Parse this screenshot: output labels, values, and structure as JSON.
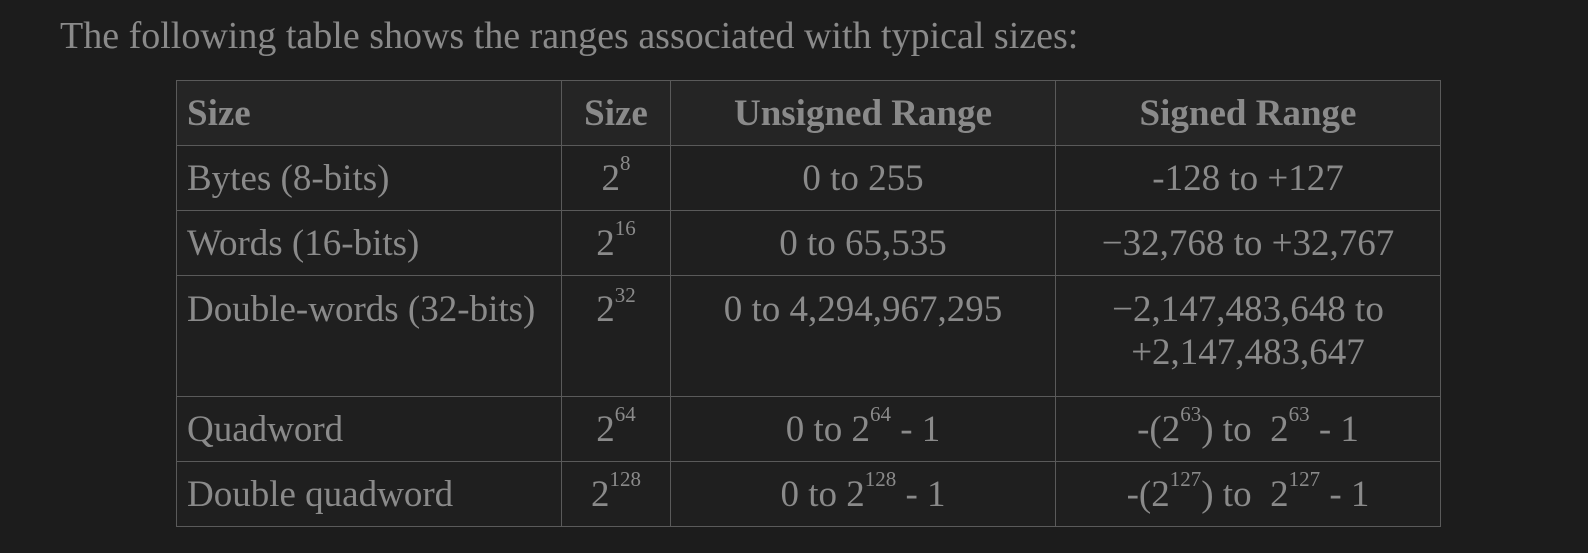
{
  "intro_text": "The following table shows the ranges associated with typical sizes:",
  "table": {
    "headers": [
      "Size",
      "Size",
      "Unsigned Range",
      "Signed Range"
    ],
    "rows": [
      {
        "name": "Bytes (8-bits)",
        "size": {
          "base": "2",
          "exp": "8"
        },
        "unsigned": "0 to 255",
        "signed": "-128 to +127"
      },
      {
        "name": "Words (16-bits)",
        "size": {
          "base": "2",
          "exp": "16"
        },
        "unsigned": "0 to 65,535",
        "signed": "−32,768 to +32,767"
      },
      {
        "name": "Double-words (32-bits)",
        "size": {
          "base": "2",
          "exp": "32"
        },
        "unsigned": "0 to 4,294,967,295",
        "signed_line1": "−2,147,483,648 to",
        "signed_line2": "+2,147,483,647"
      },
      {
        "name": "Quadword",
        "size": {
          "base": "2",
          "exp": "64"
        },
        "unsigned": {
          "pre": "0 to 2",
          "exp": "64",
          "post": " - 1"
        },
        "signed": {
          "pre": "-(2",
          "exp1": "63",
          "mid": ") to  2",
          "exp2": "63",
          "post": " - 1"
        }
      },
      {
        "name": "Double quadword",
        "size": {
          "base": "2",
          "exp": "128"
        },
        "unsigned": {
          "pre": "0 to 2",
          "exp": "128",
          "post": " - 1"
        },
        "signed": {
          "pre": "-(2",
          "exp1": "127",
          "mid": ") to  2",
          "exp2": "127",
          "post": " - 1"
        }
      }
    ]
  }
}
